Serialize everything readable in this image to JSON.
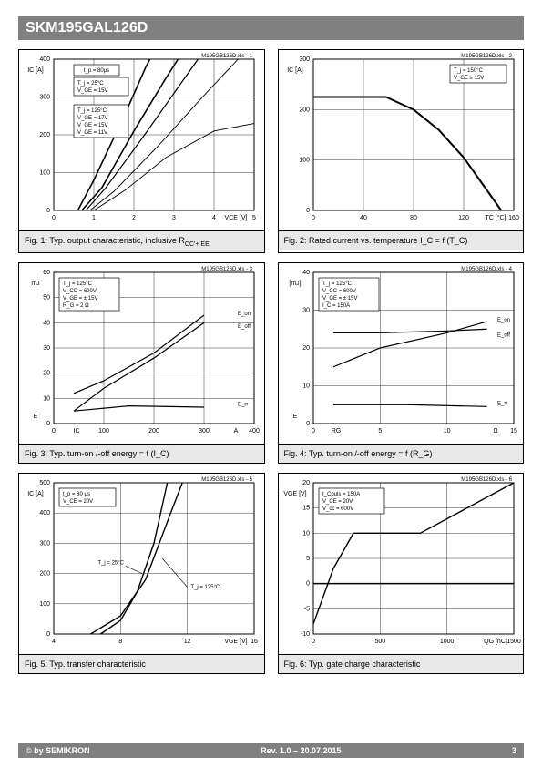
{
  "header": {
    "part_number": "SKM195GAL126D"
  },
  "footer": {
    "copyright": "© by SEMIKRON",
    "revision": "Rev. 1.0 – 20.07.2015",
    "page": "3"
  },
  "figures": {
    "fig1": {
      "type": "line",
      "caption": "Fig. 1: Typ. output characteristic, inclusive R",
      "caption_sub": "CC'+ EE'",
      "file_tag": "M195GB126D.xls - 1",
      "x_label": "V_CE [V]",
      "y_label": "I_C [A]",
      "xlim": [
        0,
        5
      ],
      "ylim": [
        0,
        400
      ],
      "xtick_step": 1,
      "ytick_step": 100,
      "legend1": [
        "t_p = 80μs"
      ],
      "legend2": [
        "T_j = 25°C",
        "V_GE = 15V"
      ],
      "legend3": [
        "T_j = 125°C",
        "V_GE = 17V",
        "V_GE = 15V",
        "V_GE = 11V"
      ],
      "curves": [
        {
          "pts": [
            [
              0.7,
              0
            ],
            [
              1.2,
              60
            ],
            [
              2.0,
              210
            ],
            [
              2.8,
              350
            ],
            [
              3.1,
              400
            ]
          ],
          "w": 1.6
        },
        {
          "pts": [
            [
              0.8,
              0
            ],
            [
              1.3,
              60
            ],
            [
              2.2,
              190
            ],
            [
              3.2,
              340
            ],
            [
              3.6,
              400
            ]
          ],
          "w": 1.2
        },
        {
          "pts": [
            [
              0.9,
              0
            ],
            [
              1.5,
              50
            ],
            [
              2.6,
              170
            ],
            [
              3.8,
              310
            ],
            [
              4.6,
              400
            ]
          ],
          "w": 0.9
        },
        {
          "pts": [
            [
              1.0,
              0
            ],
            [
              1.8,
              55
            ],
            [
              2.8,
              140
            ],
            [
              4.0,
              210
            ],
            [
              5.0,
              230
            ]
          ],
          "w": 0.9
        },
        {
          "pts": [
            [
              0.6,
              0
            ],
            [
              1.0,
              80
            ],
            [
              1.8,
              260
            ],
            [
              2.3,
              380
            ],
            [
              2.4,
              400
            ]
          ],
          "w": 1.6
        }
      ]
    },
    "fig2": {
      "type": "line",
      "caption": "Fig. 2: Rated current vs. temperature I_C = f (T_C)",
      "file_tag": "M195GB126D.xls - 2",
      "x_label": "T_C [°C]",
      "y_label": "I_C [A]",
      "xlim": [
        0,
        160
      ],
      "ylim": [
        0,
        300
      ],
      "xtick_step": 40,
      "ytick_step": 100,
      "legend": [
        "T_j = 150°C",
        "V_GE ≥ 15V"
      ],
      "curves": [
        {
          "pts": [
            [
              0,
              225
            ],
            [
              58,
              225
            ],
            [
              80,
              200
            ],
            [
              100,
              160
            ],
            [
              120,
              105
            ],
            [
              140,
              35
            ],
            [
              150,
              0
            ]
          ],
          "w": 2.0
        }
      ]
    },
    "fig3": {
      "type": "line",
      "caption": "Fig. 3: Typ. turn-on /-off energy = f (I_C)",
      "file_tag": "M195GB126D.xls - 3",
      "x_label": "A",
      "x_label2": "I_C",
      "y_label": "mJ",
      "y_label2": "E",
      "xlim": [
        0,
        400
      ],
      "ylim": [
        0,
        60
      ],
      "xtick_step": 100,
      "ytick_step": 10,
      "legend": [
        "T_j = 125°C",
        "V_CC = 600V",
        "V_GE = ± 15V",
        "R_G = 2 Ω"
      ],
      "series_labels": [
        "E_on",
        "E_off",
        "E_rr"
      ],
      "curves": [
        {
          "pts": [
            [
              40,
              12
            ],
            [
              100,
              17
            ],
            [
              200,
              28
            ],
            [
              300,
              43
            ]
          ],
          "w": 1.2
        },
        {
          "pts": [
            [
              40,
              5
            ],
            [
              100,
              14
            ],
            [
              200,
              26
            ],
            [
              300,
              40
            ]
          ],
          "w": 1.2
        },
        {
          "pts": [
            [
              40,
              5
            ],
            [
              150,
              7
            ],
            [
              300,
              6.5
            ]
          ],
          "w": 1.2
        }
      ]
    },
    "fig4": {
      "type": "line",
      "caption": "Fig. 4: Typ. turn-on /-off energy = f (R_G)",
      "file_tag": "M195GB126D.xls - 4",
      "x_label": "Ω",
      "x_label2": "R_G",
      "y_label": "[mJ]",
      "y_label2": "E",
      "xlim": [
        0,
        15
      ],
      "ylim": [
        0,
        40
      ],
      "xtick_step": 5,
      "ytick_step": 10,
      "legend": [
        "T_j = 125°C",
        "V_CC = 600V",
        "V_GE = ± 15V",
        "I_C = 150A"
      ],
      "series_labels": [
        "E_on",
        "E_off",
        "E_rr"
      ],
      "curves": [
        {
          "pts": [
            [
              1.5,
              15
            ],
            [
              5,
              20
            ],
            [
              10,
              24
            ],
            [
              13,
              27
            ]
          ],
          "w": 1.2
        },
        {
          "pts": [
            [
              1.5,
              24
            ],
            [
              5,
              24
            ],
            [
              10,
              24.5
            ],
            [
              13,
              25
            ]
          ],
          "w": 1.2
        },
        {
          "pts": [
            [
              1.5,
              5
            ],
            [
              7,
              5
            ],
            [
              13,
              4.5
            ]
          ],
          "w": 1.2
        }
      ]
    },
    "fig5": {
      "type": "line",
      "caption": "Fig. 5: Typ. transfer characteristic",
      "file_tag": "M195GB126D.xls - 5",
      "x_label": "V_GE [V]",
      "y_label": "I_C [A]",
      "xlim": [
        4,
        16
      ],
      "ylim": [
        0,
        500
      ],
      "xtick_step": 4,
      "ytick_step": 100,
      "legend": [
        "t_p = 80 μs",
        "V_CE = 20V"
      ],
      "series_labels": [
        "T_j = 25°C",
        "T_j = 125°C"
      ],
      "curves": [
        {
          "pts": [
            [
              6.8,
              0
            ],
            [
              8,
              45
            ],
            [
              9,
              140
            ],
            [
              10,
              300
            ],
            [
              10.8,
              500
            ]
          ],
          "w": 1.4
        },
        {
          "pts": [
            [
              6.2,
              0
            ],
            [
              8,
              60
            ],
            [
              9.5,
              180
            ],
            [
              11,
              400
            ],
            [
              11.7,
              500
            ]
          ],
          "w": 1.4
        }
      ]
    },
    "fig6": {
      "type": "line",
      "caption": "Fig. 6: Typ. gate charge characteristic",
      "file_tag": "M195GB126D.xls - 6",
      "x_label": "Q_G [nC]",
      "y_label": "V_GE [V]",
      "xlim": [
        0,
        1500
      ],
      "ylim": [
        -10,
        20
      ],
      "xtick_step": 500,
      "ytick_step": 5,
      "legend": [
        "I_Cpuls = 150A",
        "V_CE = 20V",
        "V_cc = 600V"
      ],
      "curves": [
        {
          "pts": [
            [
              0,
              -8
            ],
            [
              150,
              3
            ],
            [
              300,
              10
            ],
            [
              800,
              10
            ],
            [
              1150,
              15
            ],
            [
              1500,
              20
            ]
          ],
          "w": 1.4
        }
      ],
      "zero_line": true
    }
  },
  "colors": {
    "grid": "#000000",
    "line": "#000000",
    "bg": "#ffffff",
    "caption_bg": "#e8e8e8"
  }
}
